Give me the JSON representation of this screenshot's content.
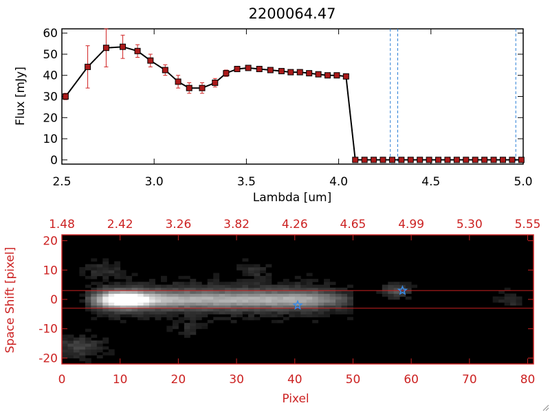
{
  "title": "2200064.47",
  "colors": {
    "red_axis": "#cc2222",
    "marker": "#aa1a1a",
    "errorbar": "#d02020",
    "line": "#000000",
    "dashed": "#2a7fd6",
    "star": "#3a8be6"
  },
  "chart_data": [
    {
      "type": "line",
      "title": "2200064.47",
      "xlabel": "Lambda [um]",
      "ylabel": "Flux [mJy]",
      "xlim": [
        2.5,
        5.0
      ],
      "ylim": [
        -2,
        62
      ],
      "xticks": [
        "2.5",
        "3.0",
        "3.5",
        "4.0",
        "4.5",
        "5.0"
      ],
      "xtick_values": [
        2.5,
        3.0,
        3.5,
        4.0,
        4.5,
        5.0
      ],
      "yticks": [
        "0",
        "10",
        "20",
        "30",
        "40",
        "50",
        "60"
      ],
      "ytick_values": [
        0,
        10,
        20,
        30,
        40,
        50,
        60
      ],
      "grid": false,
      "series": [
        {
          "x": [
            2.52,
            2.64,
            2.74,
            2.83,
            2.91,
            2.98,
            3.06,
            3.13,
            3.19,
            3.26,
            3.33,
            3.39,
            3.45,
            3.51,
            3.57,
            3.63,
            3.69,
            3.74,
            3.79,
            3.84,
            3.89,
            3.94,
            3.99,
            4.04,
            4.09,
            4.14,
            4.19,
            4.24,
            4.29,
            4.34,
            4.39,
            4.44,
            4.49,
            4.54,
            4.59,
            4.64,
            4.69,
            4.74,
            4.79,
            4.84,
            4.89,
            4.94,
            4.99
          ],
          "y": [
            30,
            44,
            53,
            53.5,
            51.5,
            47,
            42.5,
            37,
            34,
            34,
            36.5,
            41,
            43,
            43.5,
            43,
            42.5,
            42,
            41.5,
            41.5,
            41,
            40.5,
            40,
            40,
            39.5,
            0,
            0,
            0,
            0,
            0,
            0,
            0,
            0,
            0,
            0,
            0,
            0,
            0,
            0,
            0,
            0,
            0,
            0,
            0
          ],
          "yerr": [
            1.5,
            10,
            9,
            5.5,
            3,
            3,
            2.5,
            3,
            2.5,
            2.5,
            2,
            1.5,
            1,
            1,
            1,
            1,
            1,
            1,
            1,
            1,
            1,
            1,
            1,
            1,
            0,
            0,
            0,
            0,
            0,
            0,
            0,
            0,
            0,
            0,
            0,
            0,
            0,
            0,
            0,
            0,
            0,
            0,
            0
          ]
        }
      ],
      "vlines": [
        4.28,
        4.32,
        4.96
      ],
      "hline": 0
    },
    {
      "type": "heatmap",
      "xlabel": "Pixel",
      "ylabel": "Space Shift [pixel]",
      "xlim": [
        0,
        81
      ],
      "ylim": [
        -22,
        22
      ],
      "xticks": [
        "0",
        "10",
        "20",
        "30",
        "40",
        "50",
        "60",
        "70",
        "80"
      ],
      "xtick_values": [
        0,
        10,
        20,
        30,
        40,
        50,
        60,
        70,
        80
      ],
      "yticks": [
        "-20",
        "-10",
        "0",
        "10",
        "20"
      ],
      "ytick_values": [
        -20,
        -10,
        0,
        10,
        20
      ],
      "top_ticks": [
        "1.48",
        "2.42",
        "3.26",
        "3.82",
        "4.26",
        "4.65",
        "4.99",
        "5.30",
        "5.55"
      ],
      "aperture_lines": [
        3,
        -3
      ],
      "stars": [
        {
          "x": 40.5,
          "y": -2
        },
        {
          "x": 58.5,
          "y": 3
        }
      ]
    }
  ]
}
